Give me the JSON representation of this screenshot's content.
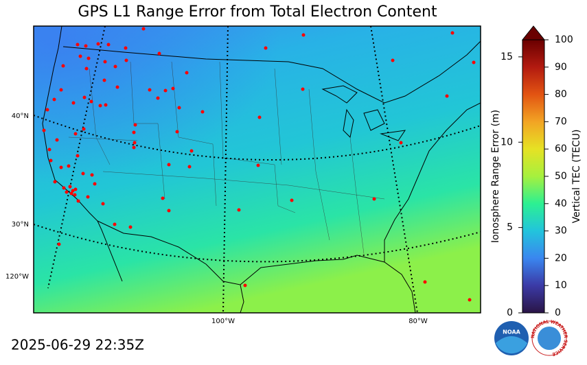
{
  "title": "GPS L1 Range Error from Total Electron Content",
  "timestamp": "2025-06-29 22:35Z",
  "map": {
    "lat_labels": [
      "40°N",
      "30°N"
    ],
    "lon_labels": [
      "120°W",
      "100°W",
      "80°W"
    ]
  },
  "colorbar": {
    "colormap": [
      "#2a1546",
      "#3b3aa6",
      "#3a86ef",
      "#22c4dc",
      "#2cf092",
      "#a6f03e",
      "#e6e224",
      "#f2a424",
      "#e25412",
      "#b21a10",
      "#6a0000"
    ],
    "left_label": "Ionosphere Range Error (m)",
    "y2lim": [
      0,
      16
    ],
    "y2ticks": [
      0,
      5,
      10,
      15
    ],
    "right_label": "Vertical TEC (TECU)",
    "ylim": [
      0,
      100
    ],
    "yticks": [
      0,
      10,
      20,
      30,
      40,
      50,
      60,
      70,
      80,
      90,
      100
    ]
  },
  "logos": {
    "noaa": "NOAA",
    "nws": "NATIONAL WEATHER SERVICE"
  }
}
